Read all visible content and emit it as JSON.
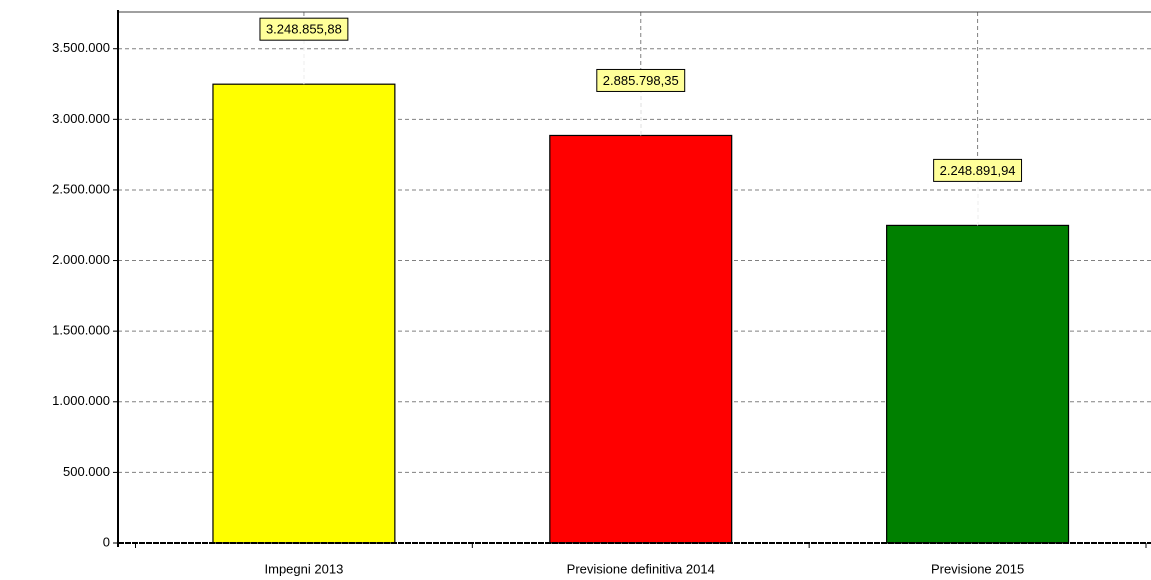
{
  "chart_data": {
    "type": "bar",
    "categories": [
      "Impegni 2013",
      "Previsione definitiva 2014",
      "Previsione 2015"
    ],
    "values": [
      3248855.88,
      2885798.35,
      2248891.94
    ],
    "value_labels": [
      "3.248.855,88",
      "2.885.798,35",
      "2.248.891,94"
    ],
    "colors": [
      "#ffff00",
      "#ff0000",
      "#008000"
    ],
    "ylim": [
      0,
      3760000
    ],
    "yticks": [
      0,
      {
        "value": 500000,
        "label": "500.000"
      },
      {
        "value": 1000000,
        "label": "1.000.000"
      },
      {
        "value": 1500000,
        "label": "1.500.000"
      },
      {
        "value": 2000000,
        "label": "2.000.000"
      },
      {
        "value": 2500000,
        "label": "2.500.000"
      },
      {
        "value": 3000000,
        "label": "3.000.000"
      },
      {
        "value": 3500000,
        "label": "3.500.000"
      }
    ],
    "grid": true
  }
}
